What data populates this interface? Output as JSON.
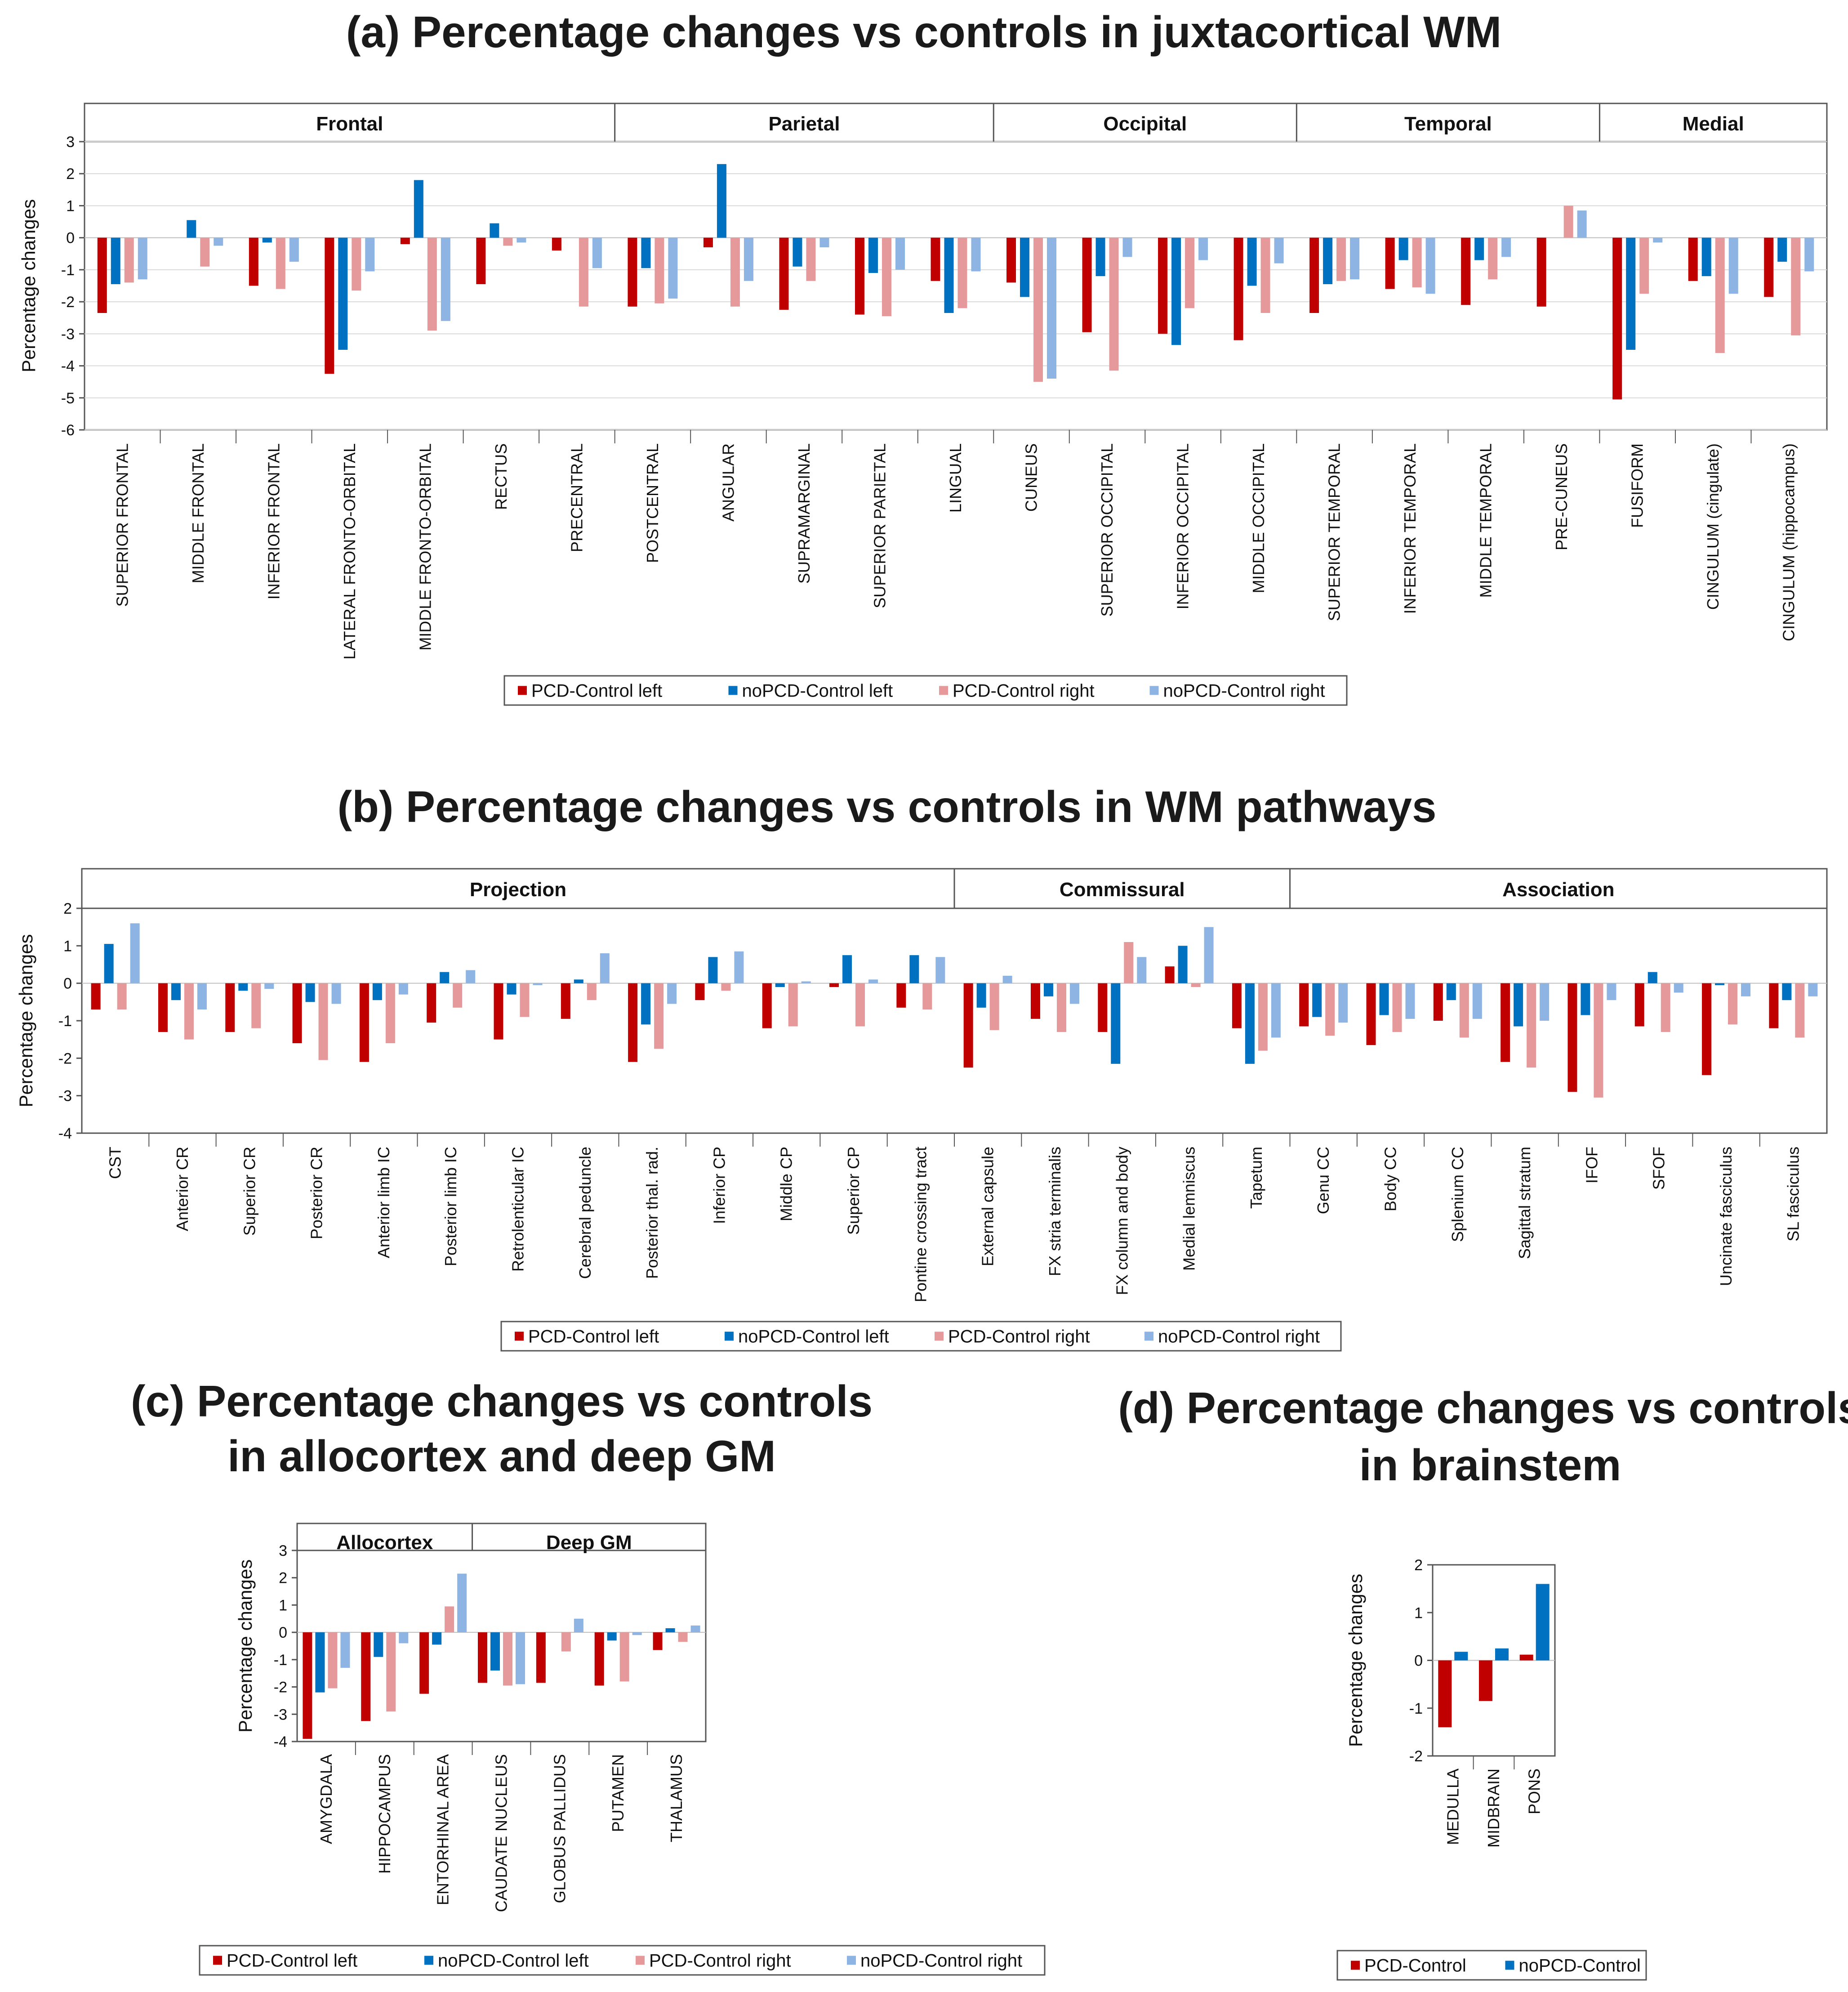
{
  "colors": {
    "pcd_left": "#c00000",
    "nopcd_left": "#0070c0",
    "pcd_right": "#e6999a",
    "nopcd_right": "#8db4e2",
    "axis": "#555555",
    "grid": "#d9d9d9"
  },
  "panels": [
    {
      "id": "a",
      "title_lines": [
        "(a) Percentage changes vs controls in juxtacortical WM"
      ],
      "ylabel": "Percentage changes",
      "chart_data": {
        "type": "bar",
        "ylim": [
          -6,
          3
        ],
        "yticks": [
          3,
          2,
          1,
          0,
          -1,
          -2,
          -3,
          -4,
          -5,
          -6
        ],
        "grid": true,
        "legend_position": "bottom",
        "groups": [
          {
            "label": "Frontal",
            "count": 7
          },
          {
            "label": "Parietal",
            "count": 5
          },
          {
            "label": "Occipital",
            "count": 4
          },
          {
            "label": "Temporal",
            "count": 4
          },
          {
            "label": "Medial",
            "count": 3
          }
        ],
        "categories": [
          "SUPERIOR FRONTAL",
          "MIDDLE FRONTAL",
          "INFERIOR FRONTAL",
          "LATERAL FRONTO-ORBITAL",
          "MIDDLE FRONTO-ORBITAL",
          "RECTUS",
          "PRECENTRAL",
          "POSTCENTRAL",
          "ANGULAR",
          "SUPRAMARGINAL",
          "SUPERIOR PARIETAL",
          "LINGUAL",
          "CUNEUS",
          "SUPERIOR OCCIPITAL",
          "INFERIOR OCCIPITAL",
          "MIDDLE OCCIPITAL",
          "SUPERIOR TEMPORAL",
          "INFERIOR TEMPORAL",
          "MIDDLE TEMPORAL",
          "PRE-CUNEUS",
          "FUSIFORM",
          "CINGULUM (cingulate)",
          "CINGULUM (hippocampus)"
        ],
        "series": [
          {
            "name": "PCD-Control left",
            "color_key": "pcd_left",
            "values": [
              -2.35,
              0,
              -1.5,
              -4.25,
              -0.2,
              -1.45,
              -0.4,
              -2.15,
              -0.3,
              -2.25,
              -2.4,
              -1.35,
              -1.4,
              -2.95,
              -3.0,
              -3.2,
              -2.35,
              -1.6,
              -2.1,
              -2.15,
              -5.05,
              -1.35,
              -1.85
            ]
          },
          {
            "name": "noPCD-Control left",
            "color_key": "nopcd_left",
            "values": [
              -1.45,
              0.55,
              -0.15,
              -3.5,
              1.8,
              0.45,
              0,
              -0.95,
              2.3,
              -0.9,
              -1.1,
              -2.35,
              -1.85,
              -1.2,
              -3.35,
              -1.5,
              -1.45,
              -0.7,
              -0.7,
              0,
              -3.5,
              -1.2,
              -0.75
            ]
          },
          {
            "name": "PCD-Control right",
            "color_key": "pcd_right",
            "values": [
              -1.4,
              -0.9,
              -1.6,
              -1.65,
              -2.9,
              -0.25,
              -2.15,
              -2.05,
              -2.15,
              -1.35,
              -2.45,
              -2.2,
              -4.5,
              -4.15,
              -2.2,
              -2.35,
              -1.35,
              -1.55,
              -1.3,
              1.0,
              -1.75,
              -3.6,
              -3.05
            ]
          },
          {
            "name": "noPCD-Control right",
            "color_key": "nopcd_right",
            "values": [
              -1.3,
              -0.25,
              -0.75,
              -1.05,
              -2.6,
              -0.15,
              -0.95,
              -1.9,
              -1.35,
              -0.3,
              -1.0,
              -1.05,
              -4.4,
              -0.6,
              -0.7,
              -0.8,
              -1.3,
              -1.75,
              -0.6,
              0.85,
              -0.15,
              -1.75,
              -1.05
            ]
          }
        ]
      }
    },
    {
      "id": "b",
      "title_lines": [
        "(b)  Percentage changes vs controls in WM pathways"
      ],
      "ylabel": "Percentage changes",
      "chart_data": {
        "type": "bar",
        "ylim": [
          -4,
          2
        ],
        "yticks": [
          2,
          1,
          0,
          -1,
          -2,
          -3,
          -4
        ],
        "grid": false,
        "legend_position": "bottom",
        "groups": [
          {
            "label": "Projection",
            "count": 13
          },
          {
            "label": "Commissural",
            "count": 5
          },
          {
            "label": "Association",
            "count": 8
          }
        ],
        "categories": [
          "CST",
          "Anterior CR",
          "Superior CR",
          "Posterior CR",
          "Anterior limb IC",
          "Posterior limb IC",
          "Retrolenticular IC",
          "Cerebral peduncle",
          "Posterior thal. rad.",
          "Inferior CP",
          "Middle CP",
          "Superior CP",
          "Pontine crossing tract",
          "External capsule",
          "FX stria terminalis",
          "FX column and body",
          "Medial lemniscus",
          "Tapetum",
          "Genu CC",
          "Body CC",
          "Splenium CC",
          "Sagittal stratum",
          "IFOF",
          "SFOF",
          "Uncinate fasciculus",
          "SL fasciculus"
        ],
        "series": [
          {
            "name": "PCD-Control left",
            "color_key": "pcd_left",
            "values": [
              -0.7,
              -1.3,
              -1.3,
              -1.6,
              -2.1,
              -1.05,
              -1.5,
              -0.95,
              -2.1,
              -0.45,
              -1.2,
              -0.1,
              -0.65,
              -2.25,
              -0.95,
              -1.3,
              0.45,
              -1.2,
              -1.15,
              -1.65,
              -1.0,
              -2.1,
              -2.9,
              -1.15,
              -2.45,
              -1.2
            ]
          },
          {
            "name": "noPCD-Control left",
            "color_key": "nopcd_left",
            "values": [
              1.05,
              -0.45,
              -0.2,
              -0.5,
              -0.45,
              0.3,
              -0.3,
              0.1,
              -1.1,
              0.7,
              -0.1,
              0.75,
              0.75,
              -0.65,
              -0.35,
              -2.15,
              1.0,
              -2.15,
              -0.9,
              -0.85,
              -0.45,
              -1.15,
              -0.85,
              0.3,
              -0.05,
              -0.45
            ]
          },
          {
            "name": "PCD-Control right",
            "color_key": "pcd_right",
            "values": [
              -0.7,
              -1.5,
              -1.2,
              -2.05,
              -1.6,
              -0.65,
              -0.9,
              -0.45,
              -1.75,
              -0.2,
              -1.15,
              -1.15,
              -0.7,
              -1.25,
              -1.3,
              1.1,
              -0.1,
              -1.8,
              -1.4,
              -1.3,
              -1.45,
              -2.25,
              -3.05,
              -1.3,
              -1.1,
              -1.45
            ]
          },
          {
            "name": "noPCD-Control right",
            "color_key": "nopcd_right",
            "values": [
              1.6,
              -0.7,
              -0.15,
              -0.55,
              -0.3,
              0.35,
              -0.05,
              0.8,
              -0.55,
              0.85,
              0.05,
              0.1,
              0.7,
              0.2,
              -0.55,
              0.7,
              1.5,
              -1.45,
              -1.05,
              -0.95,
              -0.95,
              -1.0,
              -0.45,
              -0.25,
              -0.35,
              -0.35
            ]
          }
        ]
      }
    },
    {
      "id": "c",
      "title_lines": [
        "(c) Percentage changes vs controls",
        "in allocortex and deep GM"
      ],
      "ylabel": "Percentage changes",
      "chart_data": {
        "type": "bar",
        "ylim": [
          -4,
          3
        ],
        "yticks": [
          3,
          2,
          1,
          0,
          -1,
          -2,
          -3,
          -4
        ],
        "grid": false,
        "legend_position": "bottom",
        "groups": [
          {
            "label": "Allocortex",
            "count": 3
          },
          {
            "label": "Deep GM",
            "count": 4
          }
        ],
        "categories": [
          "AMYGDALA",
          "HIPPOCAMPUS",
          "ENTORHINAL AREA",
          "CAUDATE NUCLEUS",
          "GLOBUS PALLIDUS",
          "PUTAMEN",
          "THALAMUS"
        ],
        "series": [
          {
            "name": "PCD-Control left",
            "color_key": "pcd_left",
            "values": [
              -3.9,
              -3.25,
              -2.25,
              -1.85,
              -1.85,
              -1.95,
              -0.65
            ]
          },
          {
            "name": "noPCD-Control left",
            "color_key": "nopcd_left",
            "values": [
              -2.2,
              -0.9,
              -0.45,
              -1.4,
              0,
              -0.3,
              0.15
            ]
          },
          {
            "name": "PCD-Control right",
            "color_key": "pcd_right",
            "values": [
              -2.05,
              -2.9,
              0.95,
              -1.95,
              -0.7,
              -1.8,
              -0.35
            ]
          },
          {
            "name": "noPCD-Control right",
            "color_key": "nopcd_right",
            "values": [
              -1.3,
              -0.4,
              2.15,
              -1.9,
              0.5,
              -0.1,
              0.25
            ]
          }
        ]
      }
    },
    {
      "id": "d",
      "title_lines": [
        "(d) Percentage changes vs controls",
        "in brainstem"
      ],
      "ylabel": "Percentage changes",
      "chart_data": {
        "type": "bar",
        "ylim": [
          -2,
          2
        ],
        "yticks": [
          2,
          1,
          0,
          -1,
          -2
        ],
        "grid": false,
        "legend_position": "bottom",
        "groups": [],
        "categories": [
          "MEDULLA",
          "MIDBRAIN",
          "PONS"
        ],
        "series": [
          {
            "name": "PCD-Control",
            "color_key": "pcd_left",
            "values": [
              -1.4,
              -0.85,
              0.12
            ]
          },
          {
            "name": "noPCD-Control",
            "color_key": "nopcd_left",
            "values": [
              0.18,
              0.25,
              1.6
            ]
          }
        ]
      }
    }
  ]
}
